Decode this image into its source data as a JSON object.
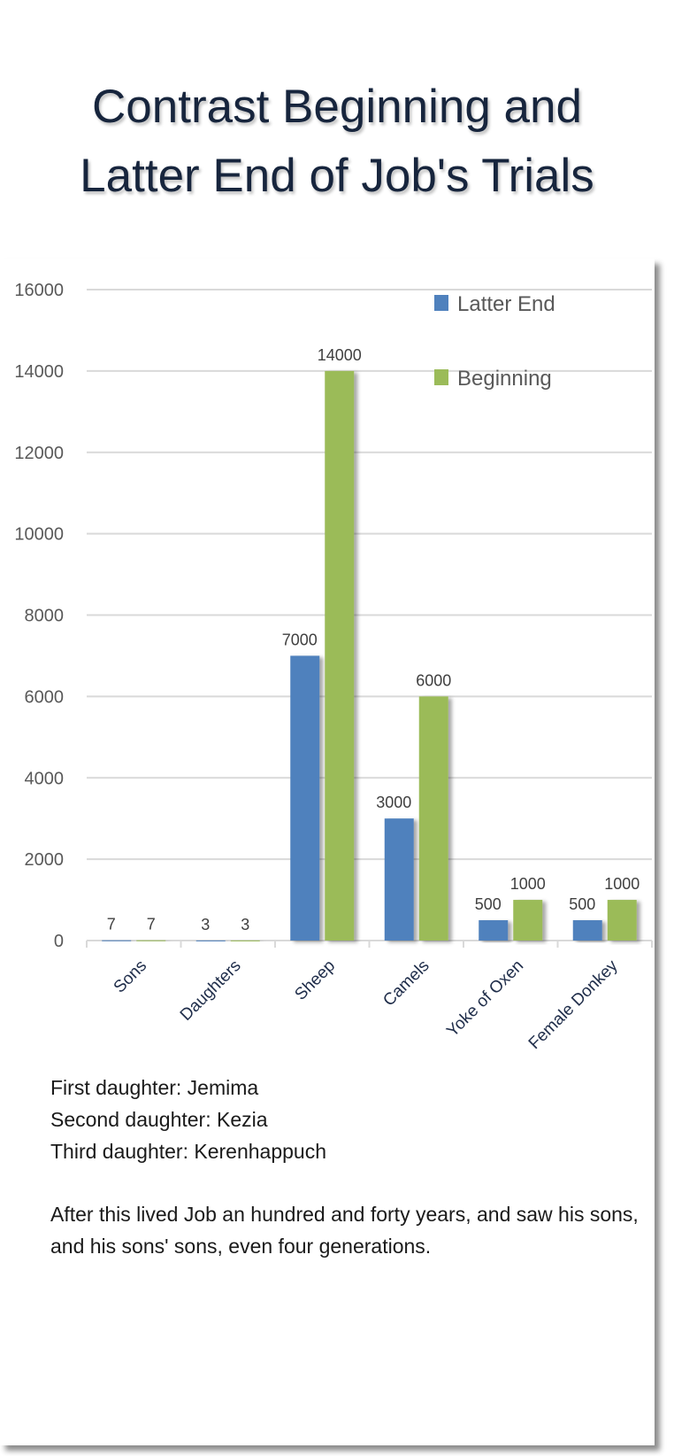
{
  "title": [
    "Contrast Beginning and",
    "Latter End of Job's Trials"
  ],
  "chart_data": {
    "type": "bar",
    "title": "Contrast Beginning and Latter End of Job's Trials",
    "xlabel": "",
    "ylabel": "",
    "ylim": [
      0,
      16000
    ],
    "yticks": [
      "0",
      "2000",
      "4000",
      "6000",
      "8000",
      "10000",
      "12000",
      "14000",
      "16000"
    ],
    "grid": true,
    "legend_position": "top-right",
    "categories": [
      "Sons",
      "Daughters",
      "Sheep",
      "Camels",
      "Yoke of Oxen",
      "Female Donkey"
    ],
    "series": [
      {
        "name": "Latter End",
        "color": "#4F81BD",
        "values": [
          7,
          3,
          7000,
          3000,
          500,
          500
        ]
      },
      {
        "name": "Beginning",
        "color": "#9BBB59",
        "values": [
          7,
          3,
          14000,
          6000,
          1000,
          1000
        ]
      }
    ]
  },
  "notes": {
    "lines": [
      "First daughter: Jemima",
      "Second daughter: Kezia",
      "Third daughter: Kerenhappuch"
    ],
    "paragraph": "After this lived Job an hundred and forty years, and saw his sons, and his sons' sons, even four generations."
  }
}
